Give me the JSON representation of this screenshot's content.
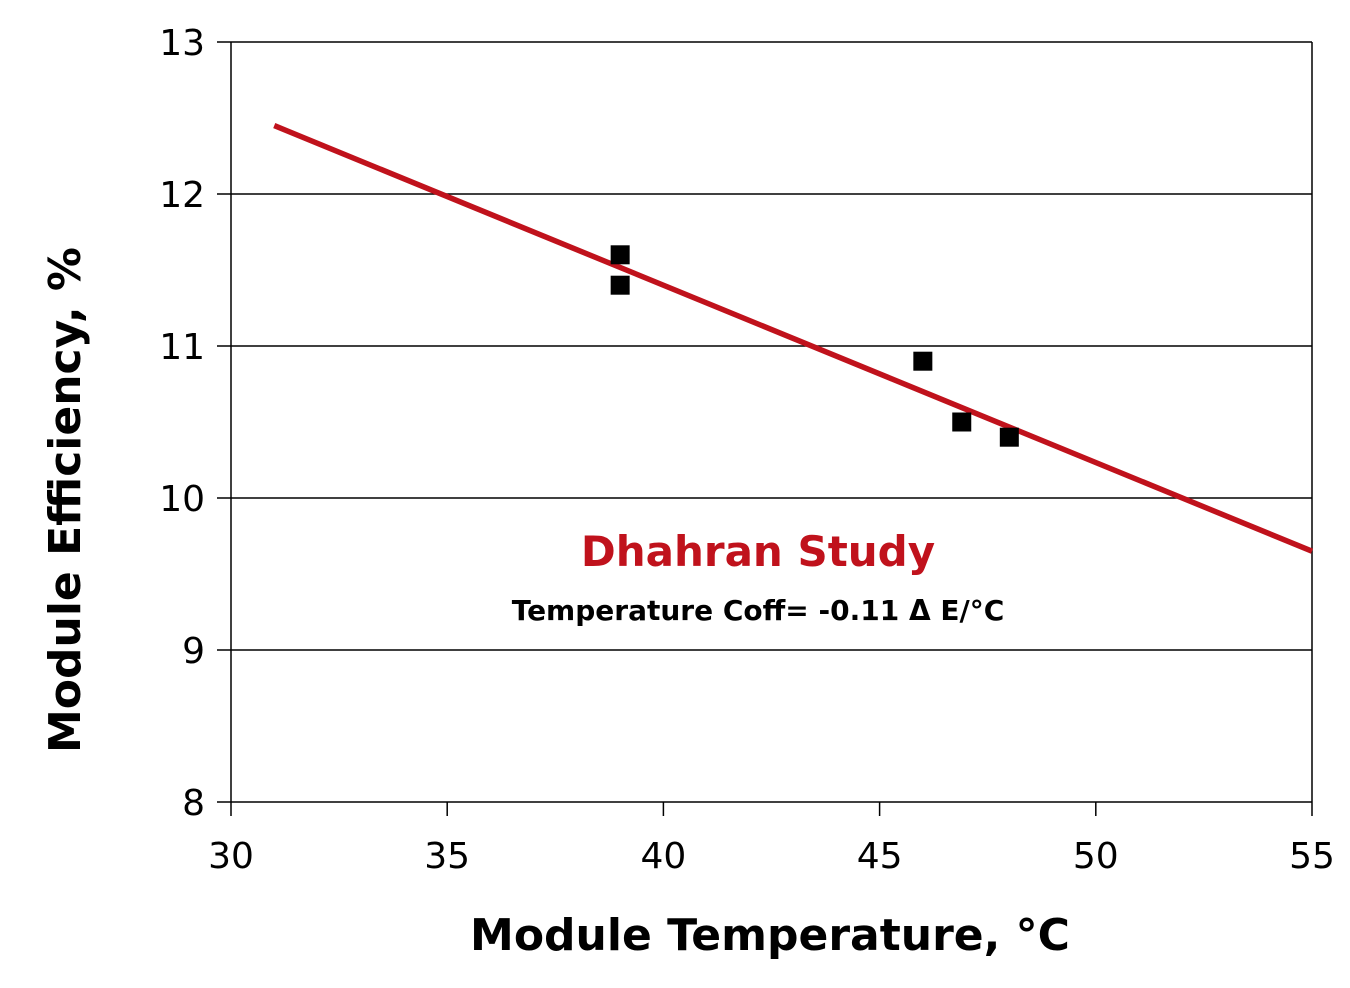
{
  "chart_data": {
    "type": "scatter",
    "title": "",
    "xlabel": "Module Temperature, °C",
    "ylabel": "Module Efficiency, %",
    "xlim": [
      30,
      55
    ],
    "ylim": [
      8,
      13
    ],
    "x_ticks": [
      "30",
      "35",
      "40",
      "45",
      "50",
      "55"
    ],
    "y_ticks": [
      "8",
      "9",
      "10",
      "11",
      "12",
      "13"
    ],
    "grid": "horizontal",
    "series": [
      {
        "type": "scatter",
        "color": "#000000",
        "x": [
          39,
          39,
          46,
          46.9,
          48
        ],
        "y": [
          11.6,
          11.4,
          10.9,
          10.5,
          10.4
        ]
      }
    ],
    "trendline": {
      "color": "#c0121c",
      "x": [
        31,
        55
      ],
      "y": [
        12.45,
        9.65
      ]
    },
    "annotations": {
      "study_title": "Dhahran Study",
      "study_color": "#c0121c",
      "coefficient_text": "Temperature Coff= -0.11 Δ E/°C"
    }
  }
}
